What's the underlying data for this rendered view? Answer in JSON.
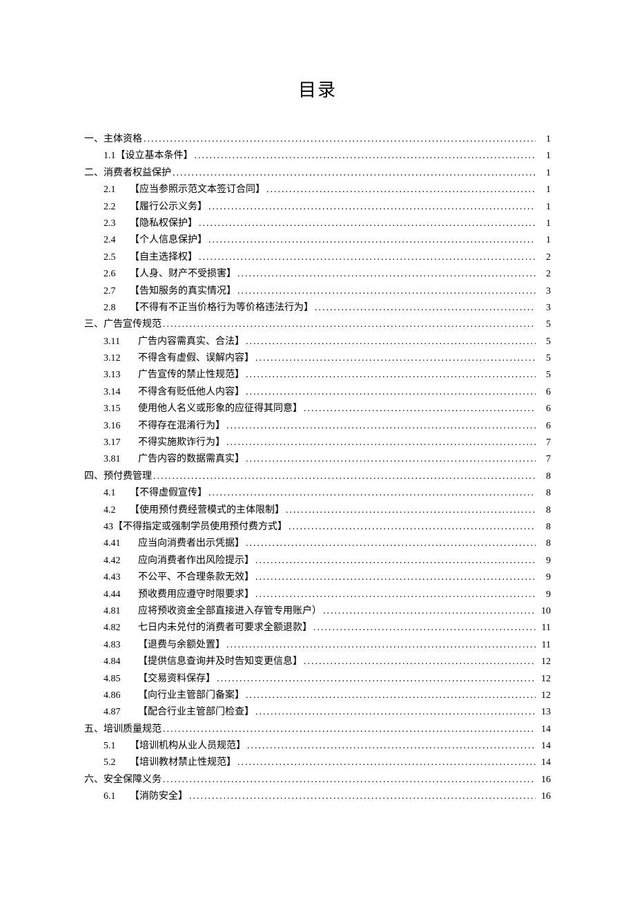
{
  "title": "目录",
  "entries": [
    {
      "indent": 0,
      "num": "",
      "label": "一、主体资格",
      "page": "1"
    },
    {
      "indent": 1,
      "num": "",
      "label": "1.1【设立基本条件】",
      "page": "1"
    },
    {
      "indent": 0,
      "num": "",
      "label": "二、消费者权益保护",
      "page": "1"
    },
    {
      "indent": 1,
      "num": "2.1",
      "label": "【应当参照示范文本签订合同】",
      "page": "1"
    },
    {
      "indent": 1,
      "num": "2.2",
      "label": "【履行公示义务】",
      "page": "1"
    },
    {
      "indent": 1,
      "num": "2.3",
      "label": "【隐私权保护】",
      "page": "1"
    },
    {
      "indent": 1,
      "num": "2.4",
      "label": "【个人信息保护】",
      "page": "1"
    },
    {
      "indent": 1,
      "num": "2.5",
      "label": "【自主选择权】",
      "page": "2"
    },
    {
      "indent": 1,
      "num": "2.6",
      "label": "【人身、财产不受损害】",
      "page": "2"
    },
    {
      "indent": 1,
      "num": "2.7",
      "label": "【告知服务的真实情况】",
      "page": "3"
    },
    {
      "indent": 1,
      "num": "2.8",
      "label": "【不得有不正当价格行为等价格违法行为】",
      "page": "3"
    },
    {
      "indent": 0,
      "num": "",
      "label": "三、广告宣传规范",
      "page": "5"
    },
    {
      "indent": 2,
      "num": "3.11",
      "label": "广告内容需真实、合法】",
      "page": "5"
    },
    {
      "indent": 2,
      "num": "3.12",
      "label": "不得含有虚假、误解内容】",
      "page": "5"
    },
    {
      "indent": 2,
      "num": "3.13",
      "label": "广告宣传的禁止性规范】",
      "page": "5"
    },
    {
      "indent": 2,
      "num": "3.14",
      "label": "不得含有贬低他人内容】",
      "page": "6"
    },
    {
      "indent": 2,
      "num": "3.15",
      "label": "使用他人名义或形象的应征得其同意】",
      "page": "6"
    },
    {
      "indent": 2,
      "num": "3.16",
      "label": "不得存在混淆行为】",
      "page": "6"
    },
    {
      "indent": 2,
      "num": "3.17",
      "label": "不得实施欺诈行为】",
      "page": "7"
    },
    {
      "indent": 2,
      "num": "3.81",
      "label": "广告内容的数据需真实】",
      "page": "7"
    },
    {
      "indent": 0,
      "num": "",
      "label": "四、预付费管理",
      "page": "8"
    },
    {
      "indent": 1,
      "num": "4.1",
      "label": "【不得虚假宣传】",
      "page": "8"
    },
    {
      "indent": 1,
      "num": "4.2",
      "label": "【使用预付费经营模式的主体限制】",
      "page": "8"
    },
    {
      "indent": 1,
      "num": "",
      "label": "43【不得指定或强制学员使用预付费方式】",
      "page": "8"
    },
    {
      "indent": 2,
      "num": "4.41",
      "label": "应当向消费者出示凭据】",
      "page": "8"
    },
    {
      "indent": 2,
      "num": "4.42",
      "label": "应向消费者作出风险提示】",
      "page": "9"
    },
    {
      "indent": 2,
      "num": "4.43",
      "label": "不公平、不合理条款无效】",
      "page": "9"
    },
    {
      "indent": 2,
      "num": "4.44",
      "label": "预收费用应遵守时限要求】",
      "page": "9"
    },
    {
      "indent": 2,
      "num": "4.81",
      "label": "应将预收资金全部直接进入存管专用账户）",
      "page": "10"
    },
    {
      "indent": 2,
      "num": "4.82",
      "label": "七日内未兑付的消费者可要求全额退款】",
      "page": "11"
    },
    {
      "indent": 2,
      "num": "4.83",
      "label": "【退费与余额处置】",
      "page": "11"
    },
    {
      "indent": 2,
      "num": "4.84",
      "label": "【提供信息查询并及时告知变更信息】",
      "page": "12"
    },
    {
      "indent": 2,
      "num": "4.85",
      "label": "【交易资料保存】",
      "page": "12"
    },
    {
      "indent": 2,
      "num": "4.86",
      "label": "【向行业主管部门备案】",
      "page": "12"
    },
    {
      "indent": 2,
      "num": "4.87",
      "label": "【配合行业主管部门检查】",
      "page": "13"
    },
    {
      "indent": 0,
      "num": "",
      "label": "五、培训质量规范",
      "page": "14"
    },
    {
      "indent": 1,
      "num": "5.1",
      "label": "【培训机构从业人员规范】",
      "page": "14"
    },
    {
      "indent": 1,
      "num": "5.2",
      "label": "【培训教材禁止性规范】",
      "page": "14"
    },
    {
      "indent": 0,
      "num": "",
      "label": "六、安全保障义务",
      "page": "16"
    },
    {
      "indent": 1,
      "num": "6.1",
      "label": "【消防安全】",
      "page": "16"
    }
  ]
}
